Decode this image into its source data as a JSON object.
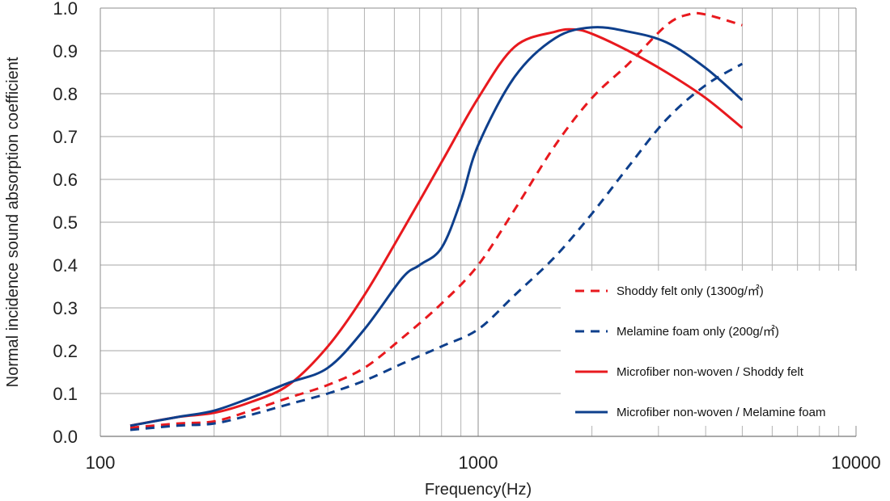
{
  "chart_data": {
    "type": "line",
    "xscale": "log",
    "xlim": [
      100,
      10000
    ],
    "ylim": [
      0.0,
      1.0
    ],
    "xlabel": "Frequency(Hz)",
    "ylabel": "Normal incidence sound absorption coefficient",
    "x_ticks": [
      "100",
      "1000",
      "10000"
    ],
    "y_ticks": [
      "0.0",
      "0.1",
      "0.2",
      "0.3",
      "0.4",
      "0.5",
      "0.6",
      "0.7",
      "0.8",
      "0.9",
      "1.0"
    ],
    "grid": true,
    "legend_position": "bottom-right",
    "series": [
      {
        "name": "Shoddy felt only (1300g/㎡)",
        "color": "#e8191e",
        "dash": "dashed",
        "x": [
          120,
          160,
          200,
          250,
          315,
          400,
          500,
          630,
          800,
          1000,
          1250,
          1600,
          2000,
          2500,
          3150,
          3600,
          4000,
          5000
        ],
        "y": [
          0.02,
          0.03,
          0.035,
          0.06,
          0.09,
          0.12,
          0.16,
          0.23,
          0.31,
          0.4,
          0.53,
          0.68,
          0.79,
          0.87,
          0.96,
          0.985,
          0.985,
          0.96
        ]
      },
      {
        "name": "Melamine foam only (200g/㎡)",
        "color": "#0e3f8c",
        "dash": "dashed",
        "x": [
          120,
          160,
          200,
          250,
          315,
          400,
          500,
          630,
          800,
          1000,
          1250,
          1600,
          2000,
          2500,
          3150,
          4000,
          5000
        ],
        "y": [
          0.015,
          0.025,
          0.03,
          0.05,
          0.075,
          0.1,
          0.13,
          0.17,
          0.21,
          0.25,
          0.33,
          0.42,
          0.52,
          0.63,
          0.74,
          0.82,
          0.87
        ]
      },
      {
        "name": "Microfiber non-woven / Shoddy felt",
        "color": "#e8191e",
        "dash": "solid",
        "x": [
          120,
          160,
          200,
          250,
          315,
          400,
          500,
          630,
          800,
          1000,
          1250,
          1600,
          1800,
          2000,
          2500,
          3150,
          4000,
          5000
        ],
        "y": [
          0.025,
          0.045,
          0.055,
          0.08,
          0.12,
          0.21,
          0.33,
          0.48,
          0.64,
          0.79,
          0.91,
          0.945,
          0.95,
          0.94,
          0.9,
          0.85,
          0.79,
          0.72
        ]
      },
      {
        "name": "Microfiber non-woven / Melamine foam",
        "color": "#0e3f8c",
        "dash": "solid",
        "x": [
          120,
          160,
          200,
          250,
          315,
          400,
          500,
          630,
          700,
          800,
          900,
          1000,
          1250,
          1600,
          2000,
          2500,
          3150,
          4000,
          5000
        ],
        "y": [
          0.025,
          0.045,
          0.06,
          0.09,
          0.125,
          0.16,
          0.25,
          0.37,
          0.4,
          0.44,
          0.55,
          0.68,
          0.84,
          0.93,
          0.955,
          0.945,
          0.92,
          0.86,
          0.785
        ]
      }
    ]
  }
}
